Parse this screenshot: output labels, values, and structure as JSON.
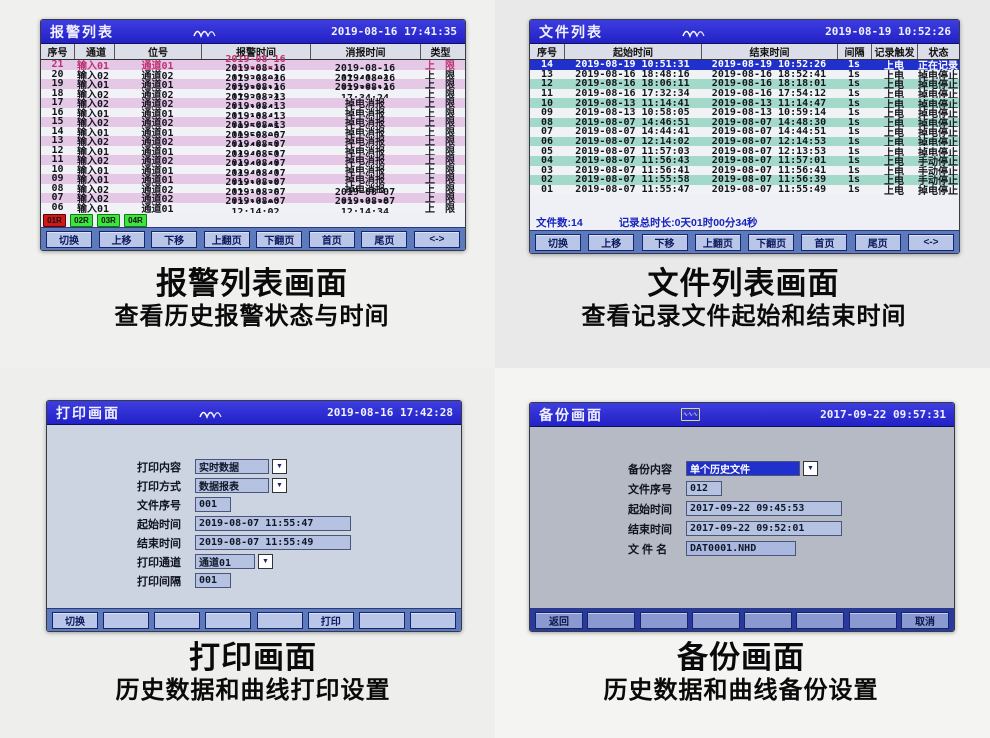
{
  "alarm_panel": {
    "title": "报警列表",
    "timestamp": "2019-08-16 17:41:35",
    "columns": [
      "序号",
      "通道",
      "位号",
      "报警时间",
      "消报时间",
      "类型"
    ],
    "rows": [
      {
        "seq": "21",
        "channel": "输入01",
        "tag": "通道01",
        "alarm_time": "2019-08-16 17:39:54",
        "clear_time": "",
        "type": "上 限",
        "active": true
      },
      {
        "seq": "20",
        "channel": "输入02",
        "tag": "通道02",
        "alarm_time": "2019-08-16 17:39:04",
        "clear_time": "2019-08-16 17:41:04",
        "type": "上 限"
      },
      {
        "seq": "19",
        "channel": "输入01",
        "tag": "通道01",
        "alarm_time": "2019-08-16 17:33:14",
        "clear_time": "2019-08-16 17:35:14",
        "type": "上 限"
      },
      {
        "seq": "18",
        "channel": "输入02",
        "tag": "通道02",
        "alarm_time": "2019-08-16 17:32:34",
        "clear_time": "2019-08-16 17:34:24",
        "type": "上 限"
      },
      {
        "seq": "17",
        "channel": "输入02",
        "tag": "通道02",
        "alarm_time": "2019-08-13 11:14:41",
        "clear_time": "掉电消报",
        "type": "上 限"
      },
      {
        "seq": "16",
        "channel": "输入01",
        "tag": "通道01",
        "alarm_time": "2019-08-13 11:14:41",
        "clear_time": "掉电消报",
        "type": "上 限"
      },
      {
        "seq": "15",
        "channel": "输入02",
        "tag": "通道02",
        "alarm_time": "2019-08-13 10:58:05",
        "clear_time": "掉电消报",
        "type": "上 限"
      },
      {
        "seq": "14",
        "channel": "输入01",
        "tag": "通道01",
        "alarm_time": "2019-08-13 10:58:05",
        "clear_time": "掉电消报",
        "type": "上 限"
      },
      {
        "seq": "13",
        "channel": "输入02",
        "tag": "通道02",
        "alarm_time": "2019-08-07 14:46:51",
        "clear_time": "掉电消报",
        "type": "上 限"
      },
      {
        "seq": "12",
        "channel": "输入01",
        "tag": "通道01",
        "alarm_time": "2019-08-07 14:46:51",
        "clear_time": "掉电消报",
        "type": "上 限"
      },
      {
        "seq": "11",
        "channel": "输入02",
        "tag": "通道02",
        "alarm_time": "2019-08-07 14:44:41",
        "clear_time": "掉电消报",
        "type": "上 限"
      },
      {
        "seq": "10",
        "channel": "输入01",
        "tag": "通道01",
        "alarm_time": "2019-08-07 14:44:41",
        "clear_time": "掉电消报",
        "type": "上 限"
      },
      {
        "seq": "09",
        "channel": "输入01",
        "tag": "通道01",
        "alarm_time": "2019-08-07 12:14:38",
        "clear_time": "掉电消报",
        "type": "上 限"
      },
      {
        "seq": "08",
        "channel": "输入02",
        "tag": "通道02",
        "alarm_time": "2019-08-07 12:14:36",
        "clear_time": "掉电消报",
        "type": "上 限"
      },
      {
        "seq": "07",
        "channel": "输入02",
        "tag": "通道02",
        "alarm_time": "2019-08-07 12:14:02",
        "clear_time": "2019-08-07 12:14:30",
        "type": "上 限"
      },
      {
        "seq": "06",
        "channel": "输入01",
        "tag": "通道01",
        "alarm_time": "2019-08-07 12:14:02",
        "clear_time": "2019-08-07 12:14:34",
        "type": "上 限"
      }
    ],
    "badges": [
      {
        "label": "01R",
        "bg": "#d01818",
        "border": "#5a0000"
      },
      {
        "label": "02R",
        "bg": "#3ce43c",
        "border": "#0f7a0f"
      },
      {
        "label": "03R",
        "bg": "#3ce43c",
        "border": "#0f7a0f"
      },
      {
        "label": "04R",
        "bg": "#3ce43c",
        "border": "#0f7a0f"
      }
    ],
    "buttons": [
      "切换",
      "上移",
      "下移",
      "上翻页",
      "下翻页",
      "首页",
      "尾页",
      "<->"
    ],
    "caption": "报警列表画面",
    "caption_sub": "查看历史报警状态与时间"
  },
  "file_panel": {
    "title": "文件列表",
    "timestamp": "2019-08-19 10:52:26",
    "columns": [
      "序号",
      "起始时间",
      "结束时间",
      "间隔",
      "记录触发",
      "状态"
    ],
    "rows": [
      {
        "seq": "14",
        "start": "2019-08-19 10:51:31",
        "end": "2019-08-19 10:52:26",
        "interval": "1s",
        "trigger": "上电",
        "status": "正在记录",
        "selected": true
      },
      {
        "seq": "13",
        "start": "2019-08-16 18:48:16",
        "end": "2019-08-16 18:52:41",
        "interval": "1s",
        "trigger": "上电",
        "status": "掉电停止"
      },
      {
        "seq": "12",
        "start": "2019-08-16 18:06:11",
        "end": "2019-08-16 18:18:01",
        "interval": "1s",
        "trigger": "上电",
        "status": "掉电停止"
      },
      {
        "seq": "11",
        "start": "2019-08-16 17:32:34",
        "end": "2019-08-16 17:54:12",
        "interval": "1s",
        "trigger": "上电",
        "status": "掉电停止"
      },
      {
        "seq": "10",
        "start": "2019-08-13 11:14:41",
        "end": "2019-08-13 11:14:47",
        "interval": "1s",
        "trigger": "上电",
        "status": "掉电停止"
      },
      {
        "seq": "09",
        "start": "2019-08-13 10:58:05",
        "end": "2019-08-13 10:59:14",
        "interval": "1s",
        "trigger": "上电",
        "status": "掉电停止"
      },
      {
        "seq": "08",
        "start": "2019-08-07 14:46:51",
        "end": "2019-08-07 14:48:30",
        "interval": "1s",
        "trigger": "上电",
        "status": "掉电停止"
      },
      {
        "seq": "07",
        "start": "2019-08-07 14:44:41",
        "end": "2019-08-07 14:44:51",
        "interval": "1s",
        "trigger": "上电",
        "status": "掉电停止"
      },
      {
        "seq": "06",
        "start": "2019-08-07 12:14:02",
        "end": "2019-08-07 12:14:53",
        "interval": "1s",
        "trigger": "上电",
        "status": "掉电停止"
      },
      {
        "seq": "05",
        "start": "2019-08-07 11:57:03",
        "end": "2019-08-07 12:13:53",
        "interval": "1s",
        "trigger": "上电",
        "status": "掉电停止"
      },
      {
        "seq": "04",
        "start": "2019-08-07 11:56:43",
        "end": "2019-08-07 11:57:01",
        "interval": "1s",
        "trigger": "上电",
        "status": "手动停止"
      },
      {
        "seq": "03",
        "start": "2019-08-07 11:56:41",
        "end": "2019-08-07 11:56:41",
        "interval": "1s",
        "trigger": "上电",
        "status": "手动停止"
      },
      {
        "seq": "02",
        "start": "2019-08-07 11:55:58",
        "end": "2019-08-07 11:56:39",
        "interval": "1s",
        "trigger": "上电",
        "status": "手动停止"
      },
      {
        "seq": "01",
        "start": "2019-08-07 11:55:47",
        "end": "2019-08-07 11:55:49",
        "interval": "1s",
        "trigger": "上电",
        "status": "掉电停止"
      }
    ],
    "footer": {
      "file_count": "文件数:14",
      "total_duration": "记录总时长:0天01时00分34秒"
    },
    "buttons": [
      "切换",
      "上移",
      "下移",
      "上翻页",
      "下翻页",
      "首页",
      "尾页",
      "<->"
    ],
    "caption": "文件列表画面",
    "caption_sub": "查看记录文件起始和结束时间"
  },
  "print_panel": {
    "title": "打印画面",
    "timestamp": "2019-08-16 17:42:28",
    "fields": [
      {
        "label": "打印内容",
        "value": "实时数据",
        "type": "dropdown"
      },
      {
        "label": "打印方式",
        "value": "数据报表",
        "type": "dropdown"
      },
      {
        "label": "文件序号",
        "value": "001",
        "type": "input"
      },
      {
        "label": "起始时间",
        "value": "2019-08-07 11:55:47",
        "type": "input"
      },
      {
        "label": "结束时间",
        "value": "2019-08-07 11:55:49",
        "type": "input"
      },
      {
        "label": "打印通道",
        "value": "通道01",
        "type": "dropdown"
      },
      {
        "label": "打印间隔",
        "value": "001",
        "type": "input"
      }
    ],
    "buttons": [
      "切换",
      "",
      "",
      "",
      "",
      "打印",
      "",
      ""
    ],
    "caption": "打印画面",
    "caption_sub": "历史数据和曲线打印设置"
  },
  "backup_panel": {
    "title": "备份画面",
    "timestamp": "2017-09-22 09:57:31",
    "fields": [
      {
        "label": "备份内容",
        "value": "单个历史文件",
        "type": "dropdown",
        "selected": true
      },
      {
        "label": "文件序号",
        "value": "012",
        "type": "input"
      },
      {
        "label": "起始时间",
        "value": "2017-09-22 09:45:53",
        "type": "input"
      },
      {
        "label": "结束时间",
        "value": "2017-09-22 09:52:01",
        "type": "input"
      },
      {
        "label": "文 件 名",
        "value": "DAT0001.NHD",
        "type": "input",
        "highlighted": true
      }
    ],
    "buttons": [
      "返回",
      "",
      "",
      "",
      "",
      "",
      "",
      "取消"
    ],
    "caption": "备份画面",
    "caption_sub": "历史数据和曲线备份设置"
  },
  "colors": {
    "titlebar_blue": "#2a2ace",
    "selected_row_blue": "#2030cc",
    "teal_row": "#a3d9c9",
    "pink_row": "#e5c7e6",
    "active_alarm_text": "#c03070",
    "alarm_badge_red": "#d01818",
    "badge_green": "#3ce43c"
  }
}
